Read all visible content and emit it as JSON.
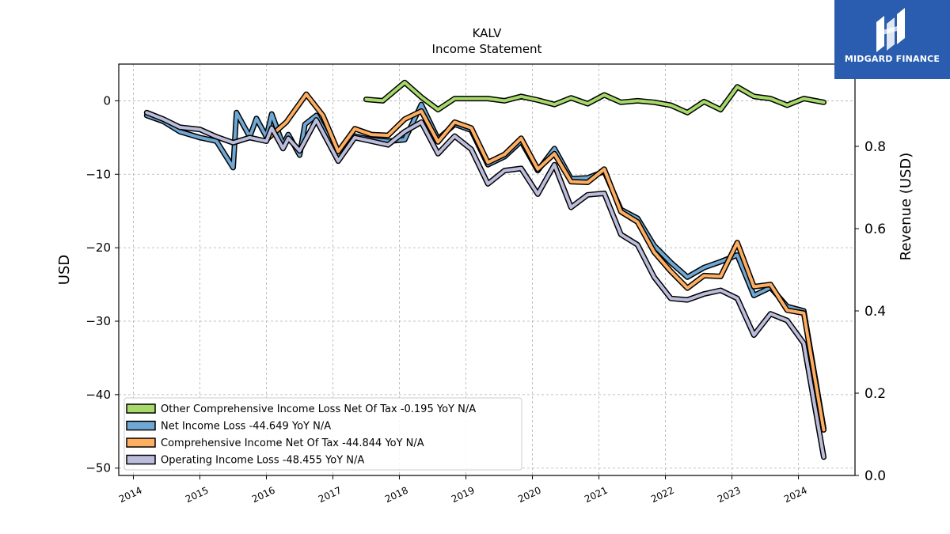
{
  "brand": {
    "name": "MIDGARD FINANCE",
    "accent": "#2a5db0"
  },
  "chart_data": {
    "type": "line",
    "title": "KALV",
    "subtitle": "Income Statement",
    "ylabel_left": "USD",
    "ylabel_right": "Revenue (USD)",
    "ylim_left": [
      -51,
      5
    ],
    "ylim_right": [
      0,
      1.0
    ],
    "yticks_left": [
      0,
      -10,
      -20,
      -30,
      -40,
      -50
    ],
    "yticks_left_labels": [
      "0",
      "−10",
      "−20",
      "−30",
      "−40",
      "−50"
    ],
    "yticks_right": [
      0.0,
      0.2,
      0.4,
      0.6,
      0.8
    ],
    "yticks_right_labels": [
      "0.0",
      "0.2",
      "0.4",
      "0.6",
      "0.8"
    ],
    "xlim": [
      2013.78,
      2024.85
    ],
    "xticks": [
      2014,
      2015,
      2016,
      2017,
      2018,
      2019,
      2020,
      2021,
      2022,
      2023,
      2024
    ],
    "xtick_labels": [
      "2014",
      "2015",
      "2016",
      "2017",
      "2018",
      "2019",
      "2020",
      "2021",
      "2022",
      "2023",
      "2024"
    ],
    "grid": true,
    "legend_position": "lower-left",
    "series": [
      {
        "name": "Other Comprehensive Income Loss Net Of Tax",
        "legend": "Other Comprehensive Income Loss Net Of Tax  -0.195 YoY N/A",
        "color": "#a6d96a",
        "points": [
          [
            2017.5,
            0.2
          ],
          [
            2017.75,
            0.0
          ],
          [
            2018.08,
            2.5
          ],
          [
            2018.33,
            0.5
          ],
          [
            2018.58,
            -1.2
          ],
          [
            2018.83,
            0.3
          ],
          [
            2019.08,
            0.3
          ],
          [
            2019.33,
            0.3
          ],
          [
            2019.58,
            0.0
          ],
          [
            2019.83,
            0.6
          ],
          [
            2020.08,
            0.1
          ],
          [
            2020.33,
            -0.5
          ],
          [
            2020.58,
            0.4
          ],
          [
            2020.83,
            -0.4
          ],
          [
            2021.08,
            0.8
          ],
          [
            2021.33,
            -0.2
          ],
          [
            2021.58,
            0.0
          ],
          [
            2021.83,
            -0.2
          ],
          [
            2022.08,
            -0.6
          ],
          [
            2022.33,
            -1.6
          ],
          [
            2022.58,
            -0.1
          ],
          [
            2022.83,
            -1.2
          ],
          [
            2023.08,
            1.9
          ],
          [
            2023.33,
            0.6
          ],
          [
            2023.58,
            0.3
          ],
          [
            2023.83,
            -0.6
          ],
          [
            2024.08,
            0.3
          ],
          [
            2024.38,
            -0.2
          ]
        ]
      },
      {
        "name": "Net Income Loss",
        "legend": "Net Income Loss  -44.649 YoY N/A",
        "color": "#6fa8d4",
        "points": [
          [
            2014.2,
            -2.0
          ],
          [
            2014.45,
            -2.8
          ],
          [
            2014.7,
            -4.2
          ],
          [
            2015.0,
            -5.0
          ],
          [
            2015.25,
            -5.5
          ],
          [
            2015.5,
            -9.1
          ],
          [
            2015.55,
            -1.6
          ],
          [
            2015.75,
            -4.9
          ],
          [
            2015.85,
            -2.4
          ],
          [
            2016.0,
            -4.9
          ],
          [
            2016.08,
            -1.8
          ],
          [
            2016.25,
            -6.0
          ],
          [
            2016.33,
            -4.6
          ],
          [
            2016.5,
            -7.4
          ],
          [
            2016.58,
            -3.2
          ],
          [
            2016.75,
            -2.0
          ],
          [
            2017.08,
            -7.5
          ],
          [
            2017.33,
            -4.8
          ],
          [
            2017.58,
            -5.3
          ],
          [
            2017.83,
            -5.5
          ],
          [
            2018.08,
            -5.3
          ],
          [
            2018.33,
            -0.5
          ],
          [
            2018.58,
            -5.2
          ],
          [
            2018.83,
            -3.2
          ],
          [
            2019.08,
            -4.0
          ],
          [
            2019.33,
            -8.7
          ],
          [
            2019.58,
            -7.6
          ],
          [
            2019.83,
            -5.5
          ],
          [
            2020.08,
            -9.5
          ],
          [
            2020.33,
            -6.5
          ],
          [
            2020.58,
            -10.6
          ],
          [
            2020.83,
            -10.5
          ],
          [
            2021.08,
            -9.6
          ],
          [
            2021.33,
            -14.8
          ],
          [
            2021.58,
            -16.0
          ],
          [
            2021.83,
            -19.7
          ],
          [
            2022.08,
            -22.0
          ],
          [
            2022.33,
            -24.0
          ],
          [
            2022.58,
            -22.7
          ],
          [
            2022.83,
            -21.9
          ],
          [
            2023.08,
            -21.0
          ],
          [
            2023.33,
            -26.5
          ],
          [
            2023.58,
            -25.4
          ],
          [
            2023.83,
            -28.0
          ],
          [
            2024.08,
            -28.6
          ],
          [
            2024.38,
            -44.6
          ]
        ]
      },
      {
        "name": "Comprehensive Income Net Of Tax",
        "legend": "Comprehensive Income Net Of Tax  -44.844 YoY N/A",
        "color": "#fdae61",
        "points": [
          [
            2016.0,
            -5.3
          ],
          [
            2016.3,
            -2.9
          ],
          [
            2016.6,
            0.9
          ],
          [
            2016.85,
            -2.0
          ],
          [
            2017.08,
            -6.9
          ],
          [
            2017.33,
            -3.8
          ],
          [
            2017.58,
            -4.6
          ],
          [
            2017.83,
            -4.7
          ],
          [
            2018.08,
            -2.5
          ],
          [
            2018.33,
            -1.4
          ],
          [
            2018.58,
            -5.6
          ],
          [
            2018.83,
            -2.9
          ],
          [
            2019.08,
            -3.7
          ],
          [
            2019.33,
            -8.4
          ],
          [
            2019.58,
            -7.3
          ],
          [
            2019.83,
            -5.1
          ],
          [
            2020.08,
            -9.3
          ],
          [
            2020.33,
            -7.2
          ],
          [
            2020.58,
            -11.0
          ],
          [
            2020.83,
            -11.1
          ],
          [
            2021.08,
            -9.3
          ],
          [
            2021.33,
            -15.1
          ],
          [
            2021.58,
            -16.5
          ],
          [
            2021.83,
            -20.6
          ],
          [
            2022.08,
            -23.2
          ],
          [
            2022.33,
            -25.5
          ],
          [
            2022.58,
            -23.8
          ],
          [
            2022.83,
            -23.9
          ],
          [
            2023.08,
            -19.3
          ],
          [
            2023.33,
            -25.3
          ],
          [
            2023.58,
            -25.0
          ],
          [
            2023.83,
            -28.5
          ],
          [
            2024.08,
            -28.9
          ],
          [
            2024.38,
            -44.8
          ]
        ]
      },
      {
        "name": "Operating Income Loss",
        "legend": "Operating Income Loss  -48.455 YoY N/A",
        "color": "#bcbddc",
        "points": [
          [
            2014.2,
            -1.6
          ],
          [
            2014.45,
            -2.5
          ],
          [
            2014.7,
            -3.6
          ],
          [
            2015.0,
            -3.9
          ],
          [
            2015.25,
            -4.9
          ],
          [
            2015.5,
            -5.7
          ],
          [
            2015.75,
            -5.0
          ],
          [
            2016.0,
            -5.5
          ],
          [
            2016.08,
            -3.7
          ],
          [
            2016.25,
            -6.5
          ],
          [
            2016.33,
            -5.1
          ],
          [
            2016.5,
            -6.8
          ],
          [
            2016.75,
            -2.6
          ],
          [
            2017.08,
            -8.2
          ],
          [
            2017.33,
            -5.0
          ],
          [
            2017.58,
            -5.5
          ],
          [
            2017.83,
            -6.0
          ],
          [
            2018.08,
            -4.2
          ],
          [
            2018.33,
            -2.9
          ],
          [
            2018.58,
            -7.2
          ],
          [
            2018.83,
            -4.8
          ],
          [
            2019.08,
            -6.6
          ],
          [
            2019.33,
            -11.3
          ],
          [
            2019.58,
            -9.5
          ],
          [
            2019.83,
            -9.2
          ],
          [
            2020.08,
            -12.7
          ],
          [
            2020.33,
            -8.7
          ],
          [
            2020.58,
            -14.5
          ],
          [
            2020.83,
            -12.8
          ],
          [
            2021.08,
            -12.6
          ],
          [
            2021.33,
            -18.2
          ],
          [
            2021.58,
            -19.6
          ],
          [
            2021.83,
            -24.0
          ],
          [
            2022.08,
            -26.9
          ],
          [
            2022.33,
            -27.1
          ],
          [
            2022.58,
            -26.3
          ],
          [
            2022.83,
            -25.8
          ],
          [
            2023.08,
            -26.9
          ],
          [
            2023.33,
            -31.9
          ],
          [
            2023.58,
            -29.0
          ],
          [
            2023.83,
            -29.9
          ],
          [
            2024.08,
            -33.0
          ],
          [
            2024.38,
            -48.5
          ]
        ]
      }
    ]
  }
}
